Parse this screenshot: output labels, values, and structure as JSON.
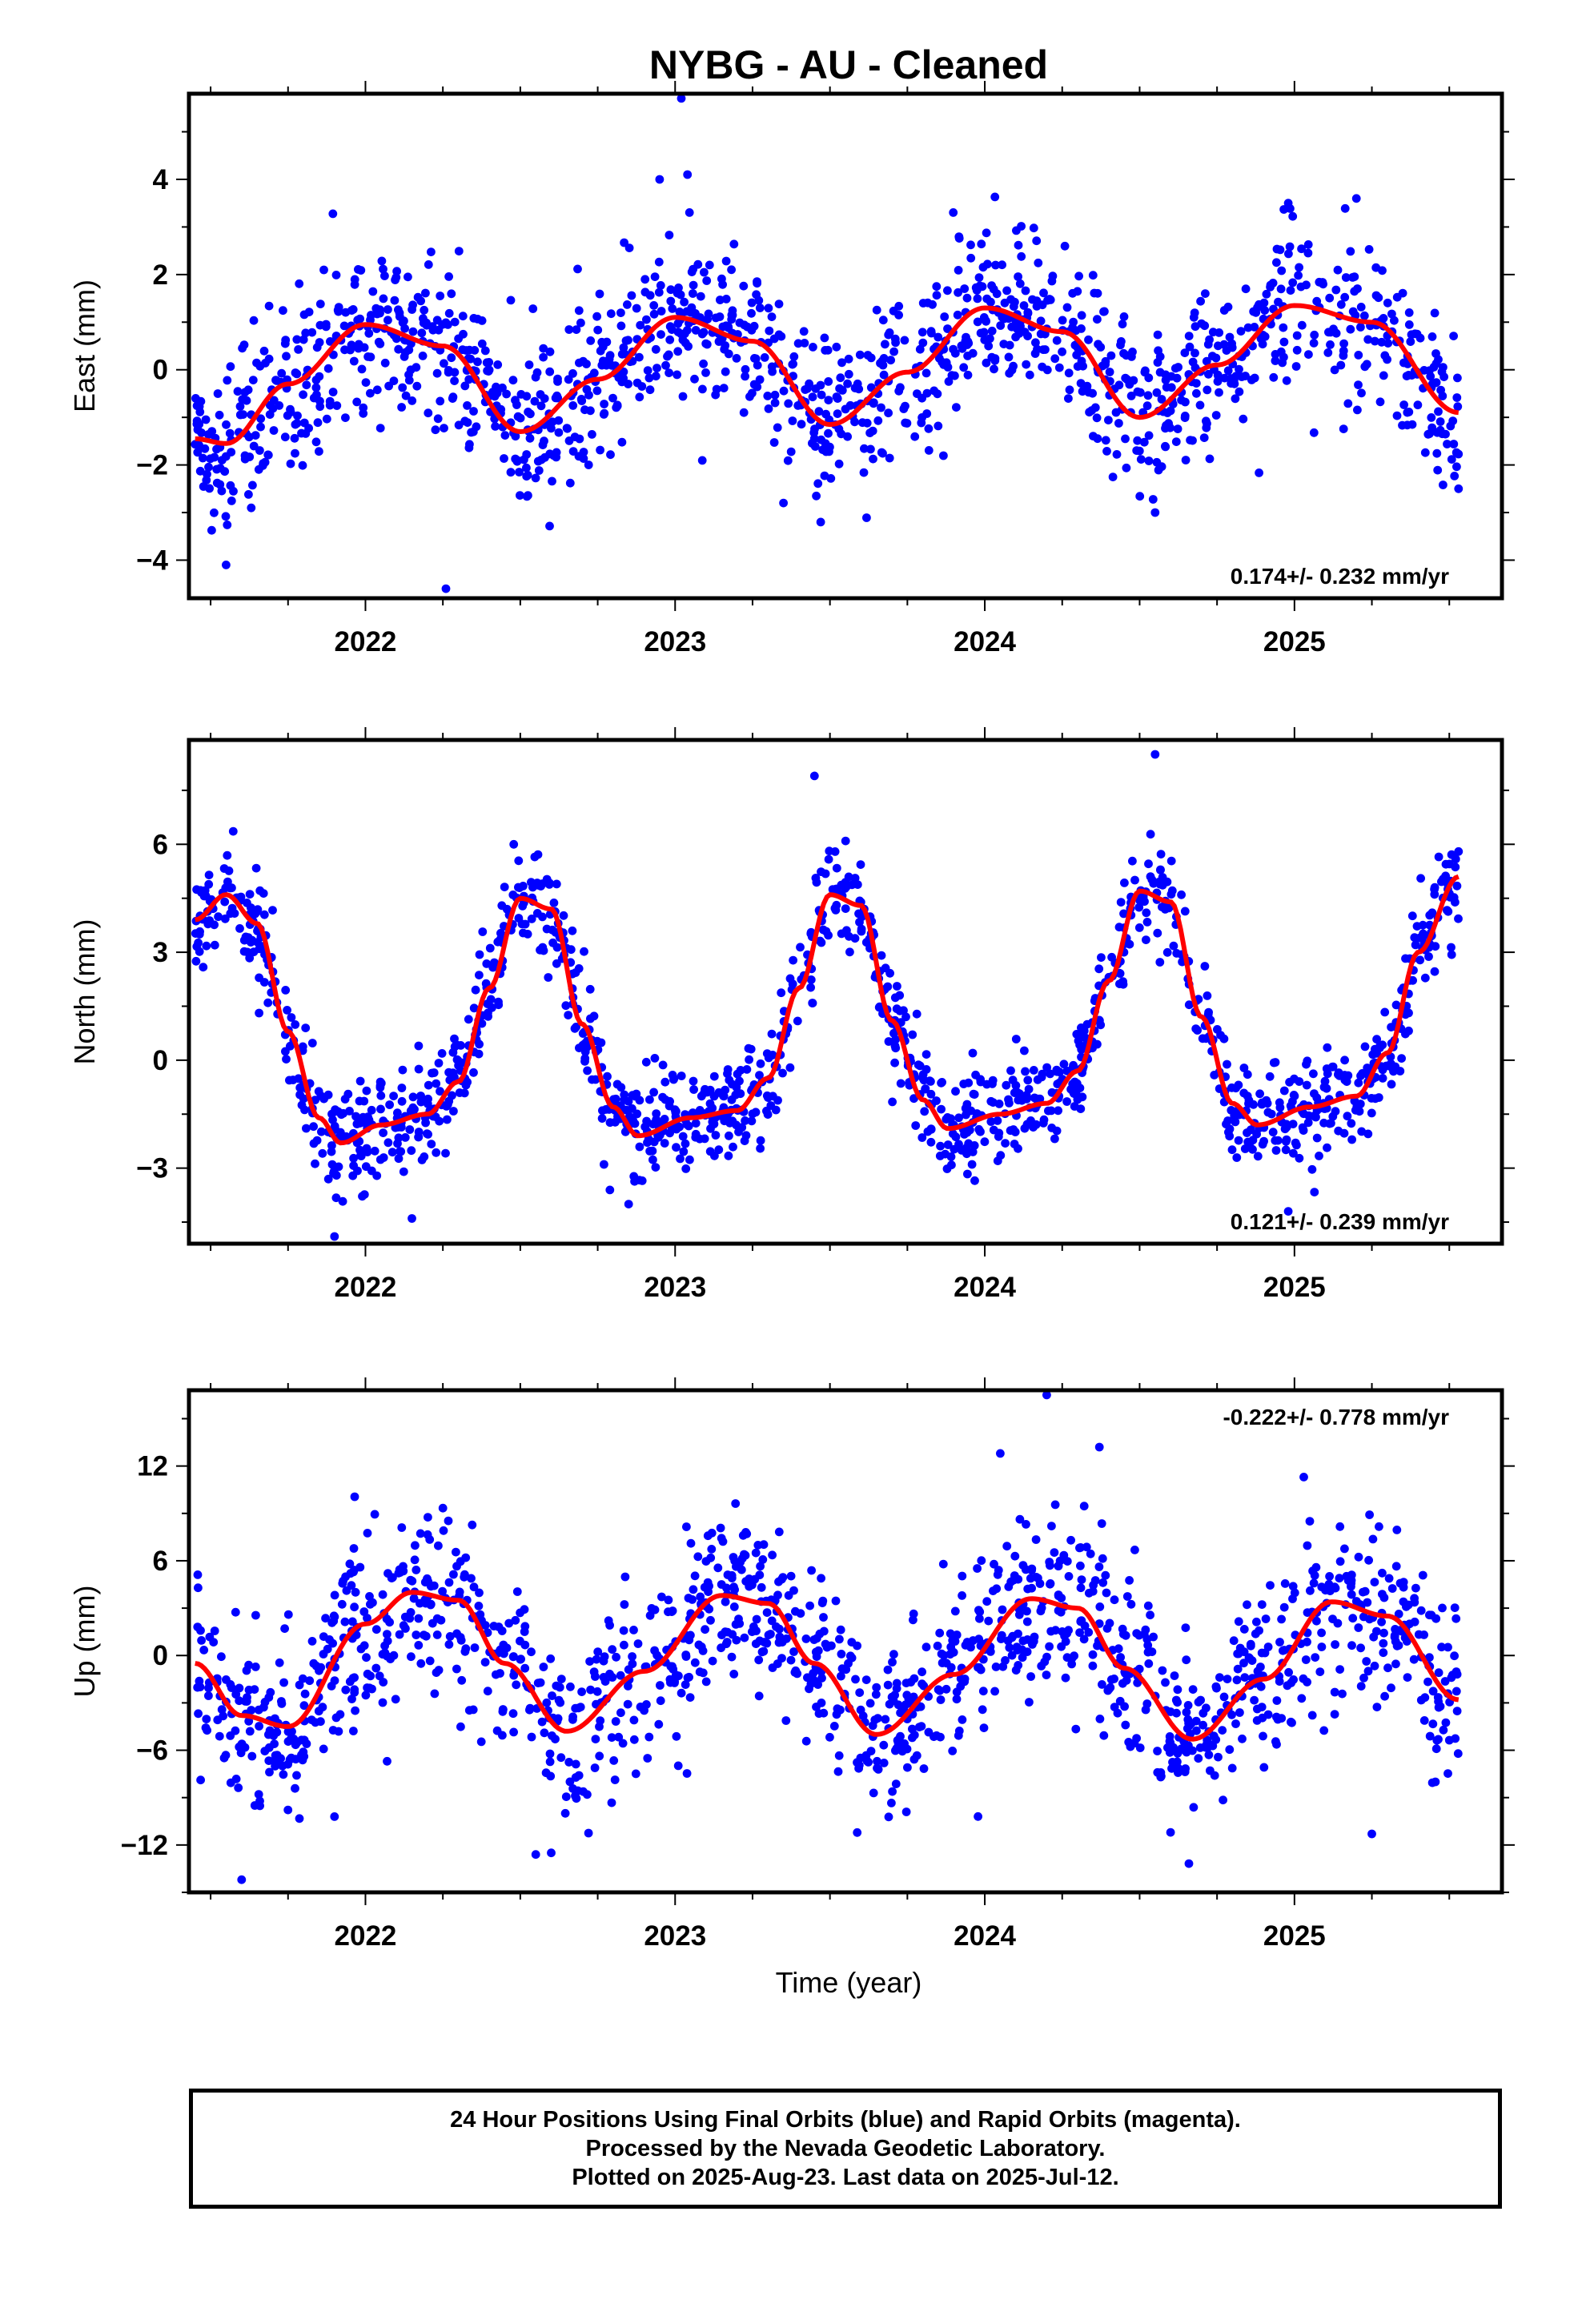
{
  "title": "NYBG  - AU - Cleaned",
  "xlabel": "Time (year)",
  "footer": {
    "line1": "24 Hour Positions Using Final Orbits (blue) and Rapid Orbits (magenta).",
    "line2": "Processed by the Nevada Geodetic Laboratory.",
    "line3": "Plotted on 2025-Aug-23. Last data on 2025-Jul-12."
  },
  "colors": {
    "points": "#0000ff",
    "model": "#ff0000",
    "frame": "#000000"
  },
  "chart_data": [
    {
      "type": "scatter",
      "ylabel": "East (mm)",
      "rate_text": "0.174+/- 0.232 mm/yr",
      "rate_position": "bottom-right",
      "xlim": [
        2021.43,
        2025.67
      ],
      "ylim": [
        -4.8,
        5.8
      ],
      "xticks": [
        2022,
        2023,
        2024,
        2025
      ],
      "xtick_labels": [
        "2022",
        "2023",
        "2024",
        "2025"
      ],
      "yticks": [
        -4,
        -2,
        0,
        2,
        4
      ],
      "ytick_labels": [
        "−4",
        "−2",
        "0",
        "2",
        "4"
      ],
      "series": [
        {
          "kind": "points",
          "x_start": 2021.45,
          "x_end": 2025.53,
          "model": {
            "offset": 0.174,
            "amplitude": 1.2,
            "peak_year_fraction": 0.03,
            "trend_per_year": 0.174,
            "reference_year": 2023.5
          },
          "scatter_sd": 0.85,
          "outliers": [
            [
              2021.55,
              -4.1
            ],
            [
              2022.26,
              -4.6
            ],
            [
              2023.02,
              5.7
            ],
            [
              2023.04,
              4.1
            ],
            [
              2022.95,
              4.0
            ],
            [
              2023.35,
              -2.8
            ],
            [
              2023.47,
              -3.2
            ],
            [
              2024.55,
              -3.0
            ],
            [
              2024.98,
              3.5
            ],
            [
              2025.2,
              3.6
            ],
            [
              2025.53,
              -2.5
            ]
          ]
        },
        {
          "kind": "line",
          "x": [
            2021.45,
            2021.55,
            2021.75,
            2022.0,
            2022.25,
            2022.5,
            2022.75,
            2023.0,
            2023.25,
            2023.5,
            2023.75,
            2024.0,
            2024.25,
            2024.5,
            2024.75,
            2025.0,
            2025.25,
            2025.53
          ],
          "y": [
            -1.45,
            -1.55,
            -0.3,
            0.95,
            0.5,
            -1.3,
            -0.2,
            1.1,
            0.6,
            -1.15,
            -0.05,
            1.3,
            0.8,
            -1.0,
            0.1,
            1.35,
            1.0,
            -0.9
          ]
        }
      ]
    },
    {
      "type": "scatter",
      "ylabel": "North (mm)",
      "rate_text": "0.121+/- 0.239 mm/yr",
      "rate_position": "bottom-right",
      "xlim": [
        2021.43,
        2025.67
      ],
      "ylim": [
        -5.1,
        8.9
      ],
      "xticks": [
        2022,
        2023,
        2024,
        2025
      ],
      "xtick_labels": [
        "2022",
        "2023",
        "2024",
        "2025"
      ],
      "yticks": [
        -3,
        0,
        3,
        6
      ],
      "ytick_labels": [
        "−3",
        "0",
        "3",
        "6"
      ],
      "series": [
        {
          "kind": "points",
          "x_start": 2021.45,
          "x_end": 2025.53,
          "scatter_sd": 0.75,
          "outliers": [
            [
              2021.9,
              -4.9
            ],
            [
              2022.15,
              -4.4
            ],
            [
              2022.85,
              -4.0
            ],
            [
              2023.45,
              7.9
            ],
            [
              2024.55,
              8.5
            ],
            [
              2024.98,
              -4.2
            ],
            [
              2025.53,
              5.8
            ]
          ]
        },
        {
          "kind": "line",
          "x": [
            2021.45,
            2021.55,
            2021.65,
            2021.75,
            2021.85,
            2021.92,
            2022.05,
            2022.2,
            2022.3,
            2022.4,
            2022.5,
            2022.6,
            2022.7,
            2022.8,
            2022.88,
            2023.05,
            2023.2,
            2023.3,
            2023.4,
            2023.5,
            2023.6,
            2023.7,
            2023.8,
            2023.88,
            2024.05,
            2024.2,
            2024.3,
            2024.4,
            2024.5,
            2024.6,
            2024.7,
            2024.8,
            2024.88,
            2025.05,
            2025.2,
            2025.3,
            2025.4,
            2025.53
          ],
          "y": [
            3.9,
            4.6,
            3.8,
            0.8,
            -1.6,
            -2.3,
            -1.8,
            -1.5,
            -0.6,
            2.0,
            4.5,
            4.2,
            1.0,
            -1.3,
            -2.1,
            -1.6,
            -1.4,
            -0.5,
            2.0,
            4.6,
            4.3,
            1.1,
            -1.1,
            -1.9,
            -1.5,
            -1.2,
            -0.3,
            2.2,
            4.7,
            4.4,
            1.2,
            -1.2,
            -1.8,
            -1.3,
            -1.0,
            0.2,
            3.0,
            5.1
          ]
        }
      ]
    },
    {
      "type": "scatter",
      "ylabel": "Up (mm)",
      "rate_text": "-0.222+/- 0.778 mm/yr",
      "rate_position": "top-right",
      "xlim": [
        2021.43,
        2025.67
      ],
      "ylim": [
        -15.0,
        16.8
      ],
      "xticks": [
        2022,
        2023,
        2024,
        2025
      ],
      "xtick_labels": [
        "2022",
        "2023",
        "2024",
        "2025"
      ],
      "yticks": [
        -12,
        -6,
        0,
        6,
        12
      ],
      "ytick_labels": [
        "−12",
        "−6",
        "0",
        "6",
        "12"
      ],
      "series": [
        {
          "kind": "points",
          "x_start": 2021.45,
          "x_end": 2025.53,
          "scatter_sd": 2.8,
          "outliers": [
            [
              2021.6,
              -14.2
            ],
            [
              2021.9,
              -10.2
            ],
            [
              2022.07,
              -6.7
            ],
            [
              2022.55,
              -12.6
            ],
            [
              2022.6,
              -12.5
            ],
            [
              2024.2,
              16.5
            ],
            [
              2024.37,
              13.2
            ],
            [
              2024.05,
              12.8
            ],
            [
              2024.6,
              -11.2
            ],
            [
              2025.03,
              11.3
            ],
            [
              2025.25,
              -11.3
            ]
          ]
        },
        {
          "kind": "line",
          "x": [
            2021.45,
            2021.6,
            2021.75,
            2022.0,
            2022.15,
            2022.3,
            2022.45,
            2022.65,
            2022.9,
            2023.15,
            2023.3,
            2023.45,
            2023.65,
            2023.9,
            2024.15,
            2024.3,
            2024.45,
            2024.67,
            2024.9,
            2025.12,
            2025.3,
            2025.53
          ],
          "y": [
            -0.5,
            -3.8,
            -4.5,
            2.0,
            4.0,
            3.5,
            -0.5,
            -4.8,
            -1.0,
            3.8,
            3.3,
            -0.5,
            -5.0,
            -1.2,
            3.6,
            3.0,
            -0.8,
            -5.3,
            -1.5,
            3.4,
            2.5,
            -2.8
          ]
        }
      ]
    }
  ]
}
